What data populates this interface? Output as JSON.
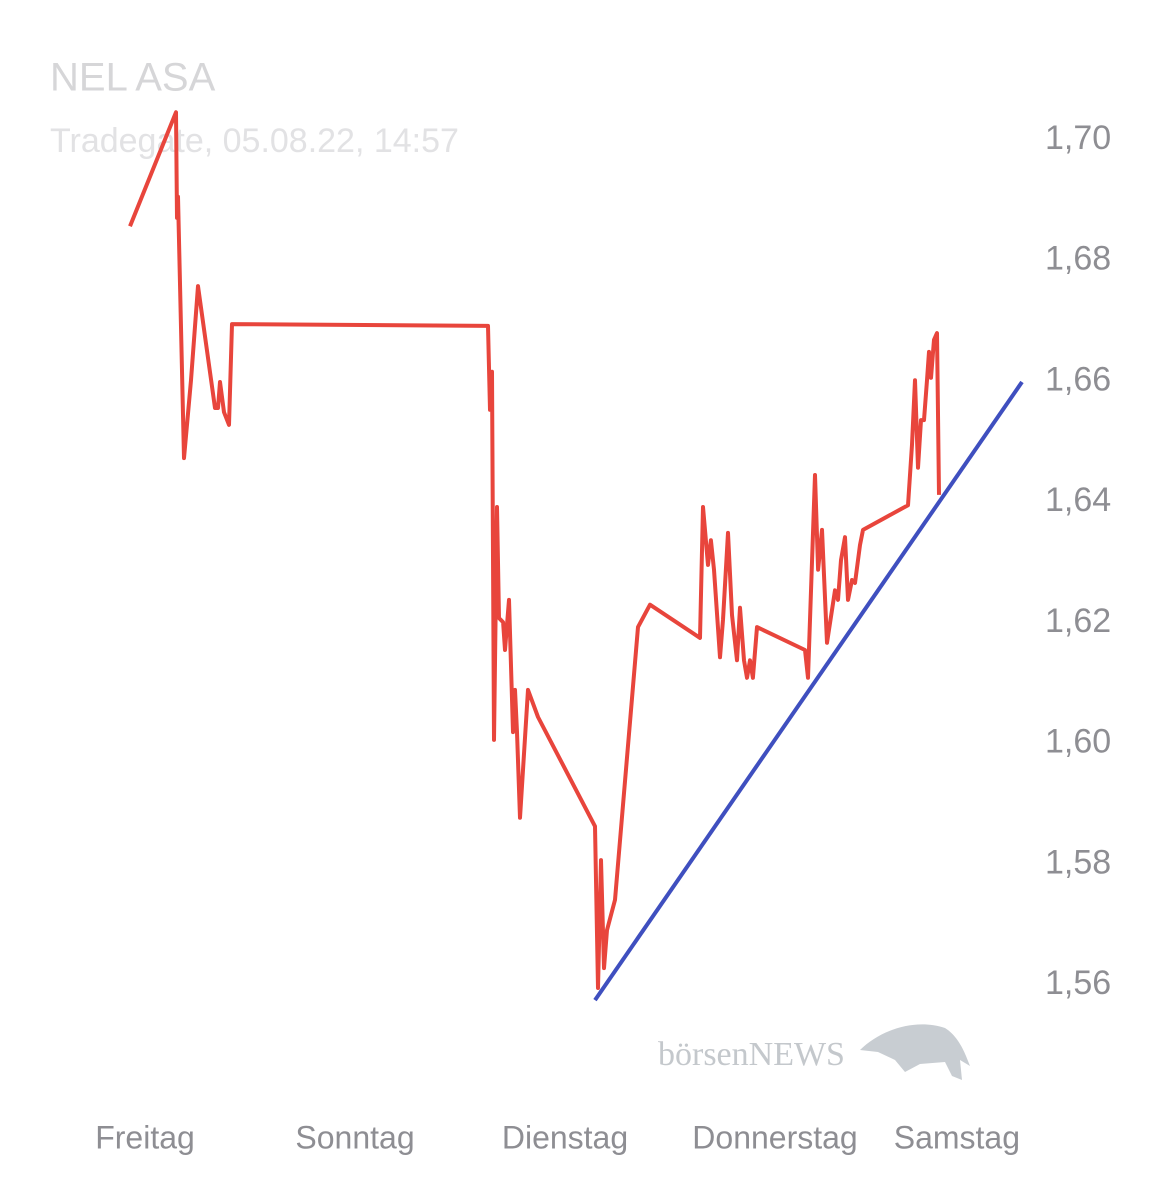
{
  "chart_data": {
    "type": "line",
    "title": "NEL ASA",
    "subtitle": "Tradegate, 05.08.22, 14:57",
    "watermark": "börsenNEWS",
    "xlim": [
      -1,
      8.5
    ],
    "xticks": [
      {
        "value": 0,
        "label": "Freitag"
      },
      {
        "value": 2,
        "label": "Sonntag"
      },
      {
        "value": 4,
        "label": "Dienstag"
      },
      {
        "value": 6,
        "label": "Donnerstag"
      },
      {
        "value": 8,
        "label": "Samstag"
      }
    ],
    "ylim": [
      1.55,
      1.71
    ],
    "yticks": [
      {
        "value": 1.56,
        "label": "1,56"
      },
      {
        "value": 1.58,
        "label": "1,58"
      },
      {
        "value": 1.6,
        "label": "1,60"
      },
      {
        "value": 1.62,
        "label": "1,62"
      },
      {
        "value": 1.64,
        "label": "1,64"
      },
      {
        "value": 1.66,
        "label": "1,66"
      },
      {
        "value": 1.68,
        "label": "1,68"
      },
      {
        "value": 1.7,
        "label": "1,70"
      }
    ],
    "grid": false,
    "series": [
      {
        "color": "#e8453c",
        "x": [
          -0.143,
          0.295,
          0.305,
          0.314,
          0.371,
          0.438,
          0.505,
          0.667,
          0.695,
          0.714,
          0.752,
          0.8,
          0.829,
          3.267,
          3.286,
          3.305,
          3.324,
          3.352,
          3.371,
          3.41,
          3.429,
          3.467,
          3.505,
          3.524,
          3.543,
          3.571,
          3.648,
          3.743,
          4.286,
          4.314,
          4.343,
          4.371,
          4.4,
          4.476,
          4.695,
          4.81,
          5.286,
          5.314,
          5.362,
          5.39,
          5.419,
          5.476,
          5.505,
          5.552,
          5.59,
          5.638,
          5.667,
          5.705,
          5.733,
          5.762,
          5.79,
          5.829,
          6.286,
          6.314,
          6.381,
          6.41,
          6.448,
          6.495,
          6.571,
          6.6,
          6.629,
          6.667,
          6.695,
          6.733,
          6.762,
          6.81,
          6.838,
          7.267,
          7.305,
          7.333,
          7.362,
          7.39,
          7.419,
          7.448,
          7.467,
          7.486,
          7.514,
          7.543,
          7.562
        ],
        "values": [
          1.6857,
          1.7046,
          1.6871,
          1.6906,
          1.6473,
          1.6602,
          1.6758,
          1.6556,
          1.6556,
          1.6599,
          1.6549,
          1.6528,
          1.6695,
          1.6692,
          1.6553,
          1.6616,
          1.6006,
          1.6392,
          1.6208,
          1.6201,
          1.6155,
          1.6238,
          1.6019,
          1.6089,
          1.6019,
          1.5877,
          1.6089,
          1.6044,
          1.5863,
          1.5595,
          1.5807,
          1.5628,
          1.5691,
          1.5741,
          1.6193,
          1.623,
          1.6175,
          1.6392,
          1.6296,
          1.6337,
          1.6288,
          1.6143,
          1.6205,
          1.6349,
          1.6213,
          1.6138,
          1.6225,
          1.6138,
          1.6109,
          1.6138,
          1.6109,
          1.6193,
          1.6155,
          1.6109,
          1.6445,
          1.6288,
          1.6354,
          1.6167,
          1.6254,
          1.6238,
          1.6304,
          1.6342,
          1.6238,
          1.6271,
          1.6266,
          1.6329,
          1.6354,
          1.6395,
          1.6495,
          1.6602,
          1.6457,
          1.6536,
          1.6536,
          1.6602,
          1.6649,
          1.6606,
          1.6669,
          1.668,
          1.6412
        ]
      },
      {
        "color": "#3f4fbf",
        "x": [
          4.286,
          8.352
        ],
        "values": [
          1.5575,
          1.6599
        ]
      }
    ]
  }
}
